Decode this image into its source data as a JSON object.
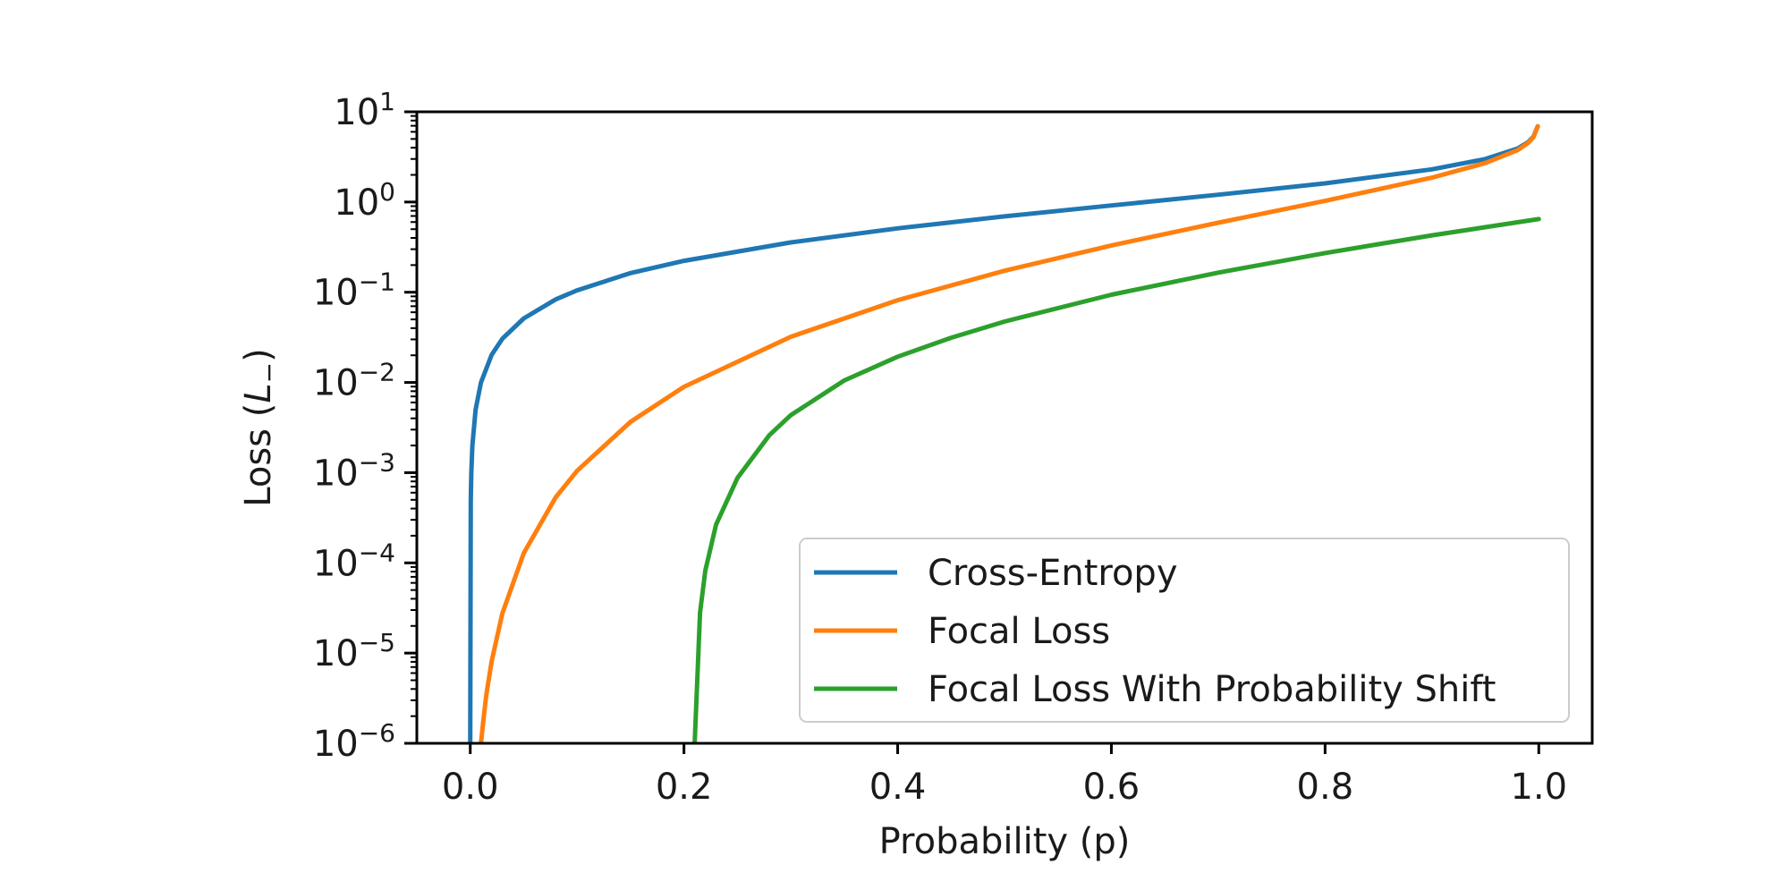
{
  "chart_data": {
    "type": "line",
    "xlabel": "Probability (p)",
    "ylabel": "Loss (L₋)",
    "ylabel_main": "Loss (",
    "ylabel_sub": "L",
    "ylabel_subscript": "−",
    "ylabel_close": ")",
    "xlim": [
      -0.05,
      1.05
    ],
    "ylim": [
      1e-06,
      10
    ],
    "yscale": "log",
    "grid": false,
    "legend_position": "lower-right",
    "x_ticks": [
      0.0,
      0.2,
      0.4,
      0.6,
      0.8,
      1.0
    ],
    "x_tick_labels": [
      "0.0",
      "0.2",
      "0.4",
      "0.6",
      "0.8",
      "1.0"
    ],
    "y_ticks": [
      {
        "value": 10,
        "base": "10",
        "exp": "1"
      },
      {
        "value": 1,
        "base": "10",
        "exp": "0"
      },
      {
        "value": 0.1,
        "base": "10",
        "exp": "−1"
      },
      {
        "value": 0.01,
        "base": "10",
        "exp": "−2"
      },
      {
        "value": 0.001,
        "base": "10",
        "exp": "−3"
      },
      {
        "value": 0.0001,
        "base": "10",
        "exp": "−4"
      },
      {
        "value": 1e-05,
        "base": "10",
        "exp": "−5"
      },
      {
        "value": 1e-06,
        "base": "10",
        "exp": "−6"
      }
    ],
    "series": [
      {
        "name": "Cross-Entropy",
        "color": "#1f77b4",
        "x": [
          0.0,
          0.0005,
          0.001,
          0.002,
          0.005,
          0.01,
          0.02,
          0.03,
          0.05,
          0.08,
          0.1,
          0.15,
          0.2,
          0.3,
          0.4,
          0.5,
          0.6,
          0.7,
          0.8,
          0.9,
          0.95,
          0.98,
          0.99,
          0.995,
          0.999
        ],
        "y": [
          1e-06,
          0.0005,
          0.001,
          0.002,
          0.005,
          0.01,
          0.0202,
          0.0305,
          0.0513,
          0.0834,
          0.105,
          0.163,
          0.223,
          0.357,
          0.511,
          0.693,
          0.916,
          1.204,
          1.609,
          2.303,
          2.996,
          3.912,
          4.605,
          5.298,
          6.908
        ]
      },
      {
        "name": "Focal Loss",
        "color": "#ff7f0e",
        "x": [
          0.01,
          0.012,
          0.015,
          0.02,
          0.03,
          0.05,
          0.08,
          0.1,
          0.15,
          0.2,
          0.3,
          0.4,
          0.5,
          0.6,
          0.7,
          0.8,
          0.9,
          0.95,
          0.98,
          0.99,
          0.995,
          0.999
        ],
        "y": [
          1e-06,
          1.7e-06,
          3.4e-06,
          8.1e-06,
          2.75e-05,
          0.000128,
          0.000534,
          0.00105,
          0.00366,
          0.00893,
          0.0321,
          0.0817,
          0.173,
          0.33,
          0.59,
          1.03,
          1.865,
          2.704,
          3.757,
          4.513,
          5.245,
          6.9
        ]
      },
      {
        "name": "Focal Loss With Probability Shift",
        "color": "#2ca02c",
        "x": [
          0.21,
          0.215,
          0.22,
          0.23,
          0.25,
          0.28,
          0.3,
          0.35,
          0.4,
          0.45,
          0.5,
          0.6,
          0.7,
          0.8,
          0.9,
          1.0
        ],
        "y": [
          1e-06,
          2.8e-05,
          8.2e-05,
          0.000265,
          0.000872,
          0.00261,
          0.00434,
          0.0105,
          0.0193,
          0.0313,
          0.0473,
          0.0938,
          0.165,
          0.272,
          0.427,
          0.648
        ]
      }
    ]
  }
}
